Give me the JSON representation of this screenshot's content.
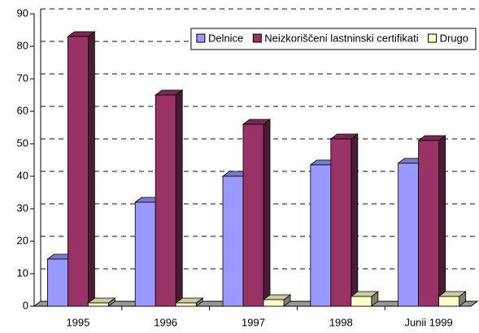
{
  "chart_data": {
    "type": "bar3d",
    "categories": [
      "1995",
      "1996",
      "1997",
      "1998",
      "Junii 1999"
    ],
    "series": [
      {
        "name": "Delnice",
        "color": "#9999ff",
        "values": [
          14.5,
          32,
          40,
          43.5,
          44
        ]
      },
      {
        "name": "Neizkoriščeni lastninski certifikati",
        "color": "#993366",
        "values": [
          83,
          65,
          56,
          51.5,
          51
        ]
      },
      {
        "name": "Drugo",
        "color": "#ffffcc",
        "values": [
          1,
          1,
          2,
          3,
          3
        ]
      }
    ],
    "ylim": [
      0,
      90
    ],
    "yticks": [
      0,
      10,
      20,
      30,
      40,
      50,
      60,
      70,
      80,
      90
    ],
    "grid": true,
    "legend": "top-right"
  }
}
